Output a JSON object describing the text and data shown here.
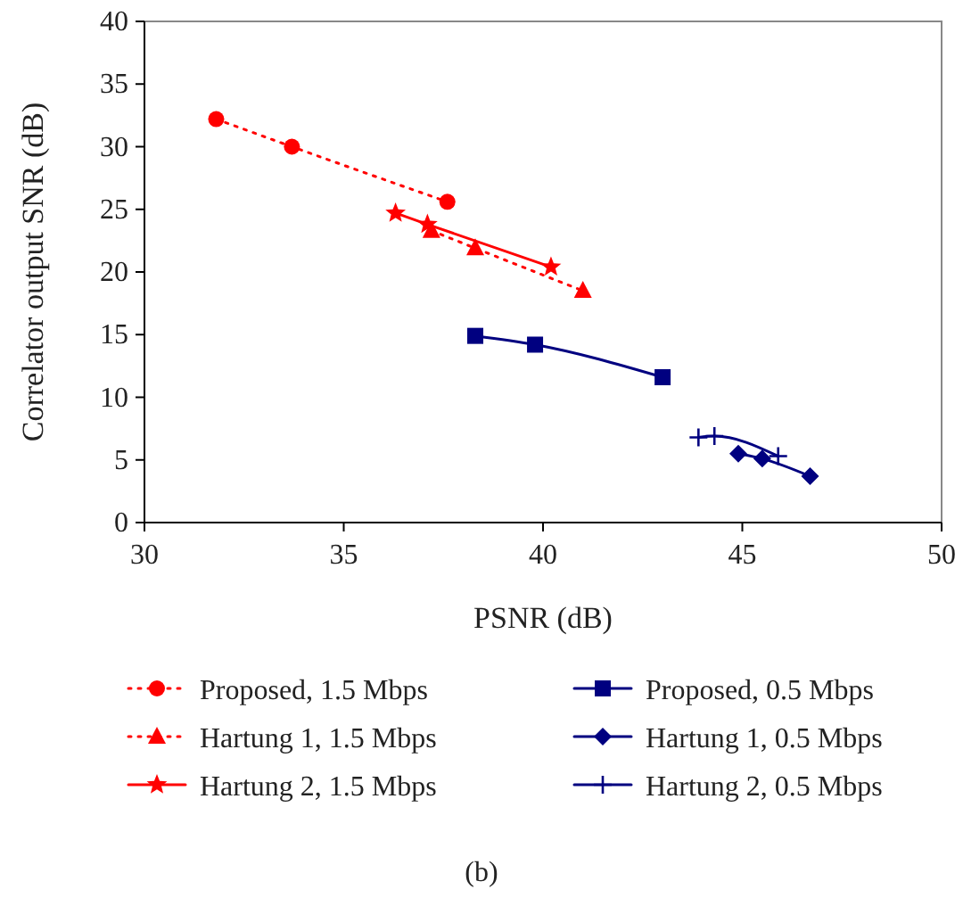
{
  "chart_data": {
    "type": "line",
    "xlabel": "PSNR (dB)",
    "ylabel": "Correlator output SNR (dB)",
    "xlim": [
      30,
      50
    ],
    "xticks": [
      30,
      35,
      40,
      45,
      50
    ],
    "ylim": [
      0,
      40
    ],
    "yticks": [
      0,
      5,
      10,
      15,
      20,
      25,
      30,
      35,
      40
    ],
    "grid": false,
    "legend": "bottom",
    "annotations": [
      "(b)"
    ],
    "series": [
      {
        "name": "Proposed, 1.5 Mbps",
        "color": "#ff0000",
        "marker": "circle",
        "line_style": "dotted",
        "x": [
          31.8,
          33.7,
          37.6
        ],
        "values": [
          32.2,
          30.0,
          25.6
        ]
      },
      {
        "name": "Hartung 1, 1.5 Mbps",
        "color": "#ff0000",
        "marker": "triangle",
        "line_style": "dotted",
        "x": [
          37.2,
          38.3,
          41.0
        ],
        "values": [
          23.3,
          21.9,
          18.5
        ]
      },
      {
        "name": "Hartung 2, 1.5 Mbps",
        "color": "#ff0000",
        "marker": "star",
        "line_style": "solid",
        "x": [
          36.3,
          37.1,
          40.2
        ],
        "values": [
          24.7,
          23.8,
          20.4
        ]
      },
      {
        "name": "Proposed, 0.5 Mbps",
        "color": "#000080",
        "marker": "square",
        "line_style": "solid",
        "x": [
          38.3,
          39.8,
          43.0
        ],
        "values": [
          14.9,
          14.2,
          11.6
        ]
      },
      {
        "name": "Hartung 1, 0.5 Mbps",
        "color": "#000080",
        "marker": "diamond",
        "line_style": "solid",
        "x": [
          44.9,
          45.5,
          46.7
        ],
        "values": [
          5.5,
          5.1,
          3.7
        ]
      },
      {
        "name": "Hartung 2, 0.5 Mbps",
        "color": "#000080",
        "marker": "cross",
        "line_style": "solid",
        "x": [
          43.9,
          44.3,
          45.9
        ],
        "values": [
          6.8,
          6.9,
          5.3
        ]
      }
    ]
  }
}
